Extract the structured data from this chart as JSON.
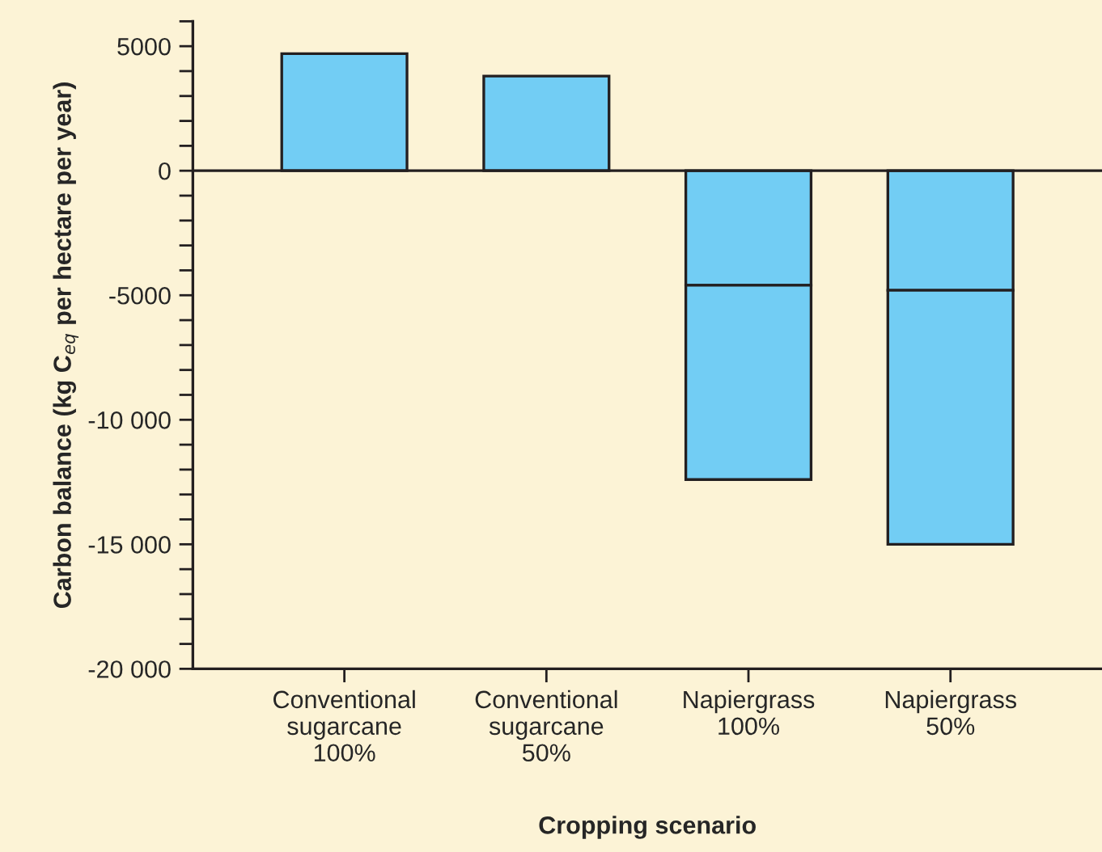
{
  "chart_data": {
    "type": "bar",
    "stacked": true,
    "xlabel": "Cropping scenario",
    "ylabel": "Carbon balance (kg C$_{eq}$ per hectare per year)",
    "categories": [
      "Conventional\nsugarcane\n100%",
      "Conventional\nsugarcane\n50%",
      "Napiergrass\n100%",
      "Napiergrass\n50%"
    ],
    "series": [
      {
        "color": "#72cdf4",
        "values": [
          4700,
          3800,
          -4600,
          -4800
        ]
      },
      {
        "color": "#72cdf4",
        "values": [
          null,
          null,
          -7800,
          -10200
        ]
      }
    ],
    "ylim": [
      -20000,
      6000
    ],
    "yticks": [
      {
        "value": -20000,
        "label": "-20 000"
      },
      {
        "value": -19000,
        "label": null
      },
      {
        "value": -18000,
        "label": null
      },
      {
        "value": -17000,
        "label": null
      },
      {
        "value": -16000,
        "label": null
      },
      {
        "value": -15000,
        "label": "-15 000"
      },
      {
        "value": -14000,
        "label": null
      },
      {
        "value": -13000,
        "label": null
      },
      {
        "value": -12000,
        "label": null
      },
      {
        "value": -11000,
        "label": null
      },
      {
        "value": -10000,
        "label": "-10 000"
      },
      {
        "value": -9000,
        "label": null
      },
      {
        "value": -8000,
        "label": null
      },
      {
        "value": -7000,
        "label": null
      },
      {
        "value": -6000,
        "label": null
      },
      {
        "value": -5000,
        "label": "-5000"
      },
      {
        "value": -4000,
        "label": null
      },
      {
        "value": -3000,
        "label": null
      },
      {
        "value": -2000,
        "label": null
      },
      {
        "value": -1000,
        "label": null
      },
      {
        "value": 0,
        "label": "0"
      },
      {
        "value": 1000,
        "label": null
      },
      {
        "value": 2000,
        "label": null
      },
      {
        "value": 3000,
        "label": null
      },
      {
        "value": 4000,
        "label": null
      },
      {
        "value": 5000,
        "label": "5000"
      },
      {
        "value": 6000,
        "label": null
      }
    ],
    "ref_lines": [
      {
        "axis": "y",
        "value": 0,
        "color": "#231f20"
      }
    ],
    "grid": false,
    "legend": false
  }
}
